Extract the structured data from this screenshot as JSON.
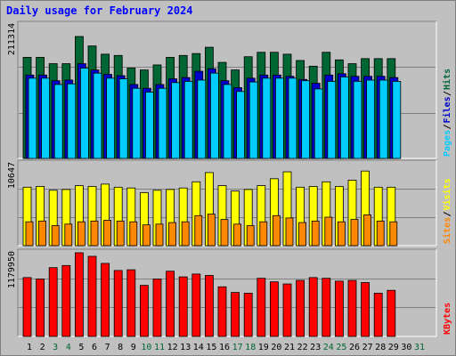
{
  "title": "Daily usage for February 2024",
  "colors": {
    "hits": "#006633",
    "files": "#0000cc",
    "pages": "#00ccff",
    "visits": "#ffff00",
    "sites": "#ff8800",
    "kbytes": "#ff0000",
    "weekend": "#006633",
    "weekday": "#000000"
  },
  "chart_data": [
    {
      "type": "bar",
      "panel": "hits-files-pages",
      "max_label": "211314",
      "ylim": [
        0,
        211314
      ],
      "grid": true,
      "legend": "right",
      "series": [
        {
          "name": "Hits",
          "values": [
            160000,
            160000,
            150000,
            150000,
            193000,
            178000,
            165000,
            163000,
            143000,
            140000,
            148000,
            160000,
            163000,
            166000,
            176000,
            152000,
            140000,
            161000,
            168000,
            168000,
            165000,
            155000,
            146000,
            168000,
            156000,
            150000,
            158000,
            158000,
            158000
          ]
        },
        {
          "name": "Files",
          "values": [
            132000,
            132000,
            123000,
            124000,
            150000,
            140000,
            133000,
            131000,
            117000,
            111000,
            117000,
            126000,
            128000,
            138000,
            142000,
            123000,
            112000,
            127000,
            132000,
            132000,
            130000,
            125000,
            119000,
            132000,
            134000,
            130000,
            130000,
            130000,
            128000
          ]
        },
        {
          "name": "Pages",
          "values": [
            127000,
            127000,
            117000,
            118000,
            143000,
            135000,
            127000,
            126000,
            111000,
            105000,
            111000,
            120000,
            122000,
            124000,
            135000,
            117000,
            106000,
            121000,
            127000,
            127000,
            127000,
            123000,
            110000,
            122000,
            129000,
            122000,
            124000,
            124000,
            122000
          ]
        }
      ],
      "legend_labels": [
        "Pages",
        "Files",
        "Hits"
      ]
    },
    {
      "type": "bar",
      "panel": "visits-sites",
      "max_label": "10647",
      "ylim": [
        0,
        10647
      ],
      "grid": true,
      "legend": "right",
      "series": [
        {
          "name": "Visits",
          "values": [
            7600,
            7700,
            7200,
            7300,
            7800,
            7700,
            8000,
            7600,
            7500,
            6900,
            7200,
            7300,
            7500,
            8300,
            9500,
            7800,
            7100,
            7300,
            7800,
            8700,
            9600,
            7600,
            7700,
            8300,
            7700,
            8500,
            9700,
            7600,
            7600
          ]
        },
        {
          "name": "Sites",
          "values": [
            3100,
            3200,
            2600,
            2800,
            3100,
            3200,
            3300,
            3200,
            3100,
            2700,
            2800,
            3000,
            3100,
            3900,
            4100,
            3400,
            2800,
            2600,
            3100,
            3900,
            3600,
            3000,
            3200,
            3700,
            3100,
            3400,
            4000,
            3200,
            3100
          ]
        }
      ],
      "legend_labels": [
        "Sites",
        "Visits"
      ]
    },
    {
      "type": "bar",
      "panel": "kbytes",
      "max_label": "1179950",
      "ylim": [
        0,
        1179950
      ],
      "grid": true,
      "legend": "right",
      "series": [
        {
          "name": "KBytes",
          "values": [
            830000,
            810000,
            970000,
            1000000,
            1180000,
            1130000,
            1030000,
            930000,
            940000,
            720000,
            810000,
            920000,
            840000,
            880000,
            860000,
            700000,
            620000,
            610000,
            820000,
            770000,
            740000,
            790000,
            830000,
            820000,
            780000,
            790000,
            760000,
            610000,
            650000
          ]
        }
      ],
      "legend_labels": [
        "KBytes"
      ]
    }
  ],
  "x_labels": [
    "1",
    "2",
    "3",
    "4",
    "5",
    "6",
    "7",
    "8",
    "9",
    "10",
    "11",
    "12",
    "13",
    "14",
    "15",
    "16",
    "17",
    "18",
    "19",
    "20",
    "21",
    "22",
    "23",
    "24",
    "25",
    "26",
    "27",
    "28",
    "29",
    "30",
    "31"
  ],
  "weekend_days": [
    3,
    4,
    10,
    11,
    17,
    18,
    24,
    25,
    31
  ]
}
